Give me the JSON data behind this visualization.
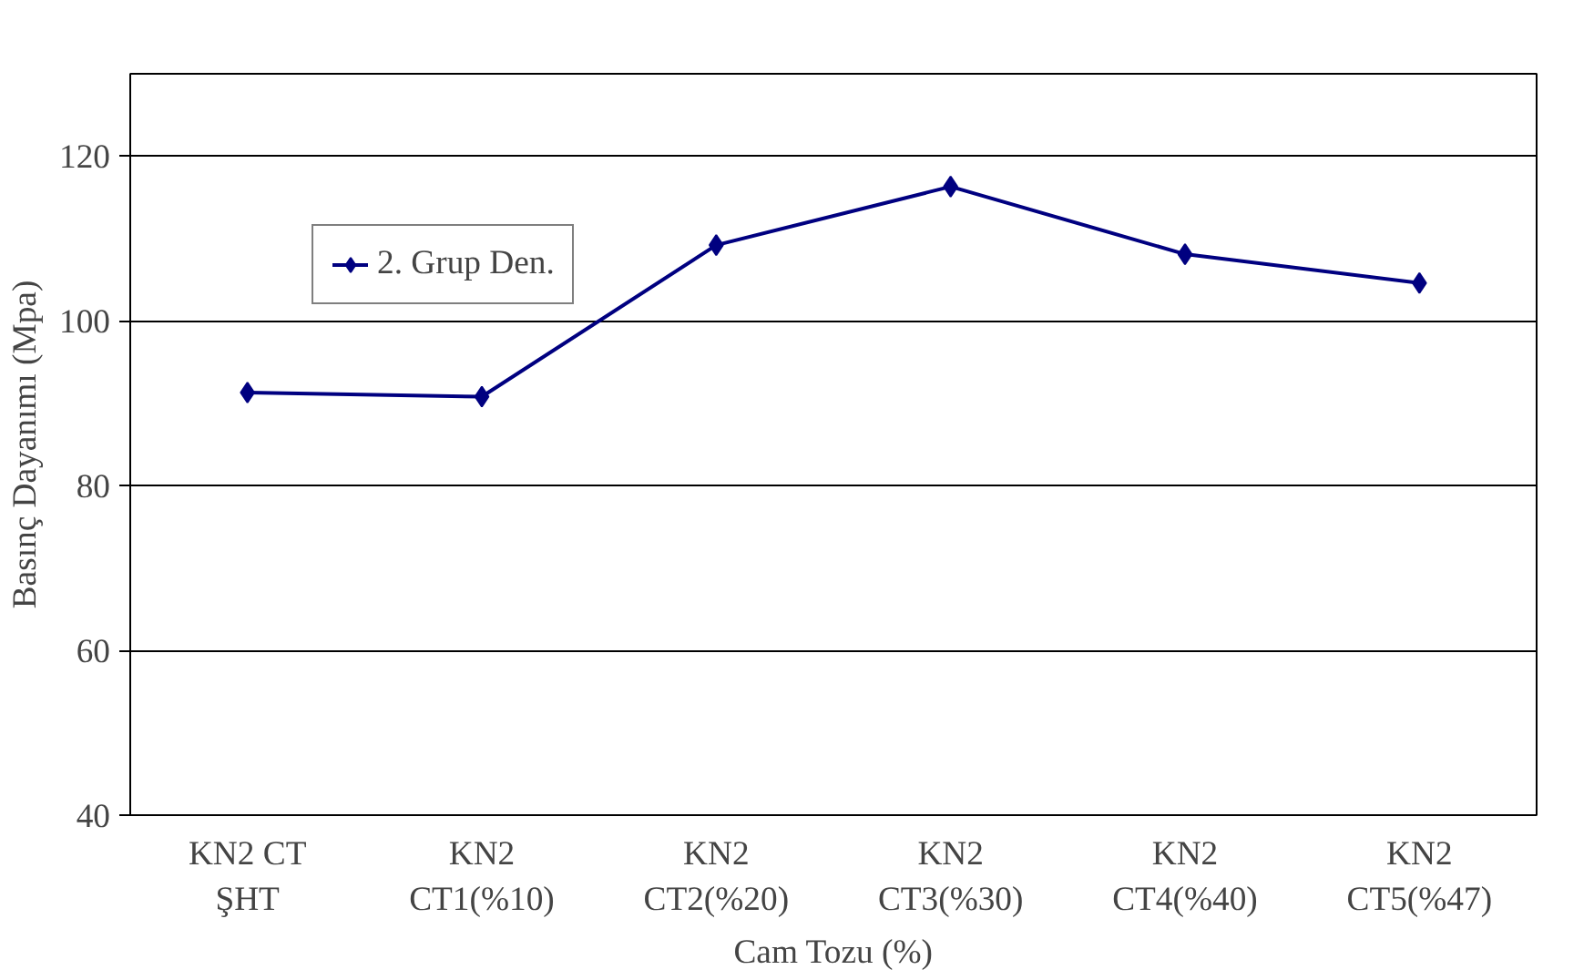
{
  "chart_data": {
    "type": "line",
    "xlabel": "Cam Tozu (%)",
    "ylabel": "Basınç Dayanımı (Mpa)",
    "categories": [
      "KN2 CT\nŞHT",
      "KN2\nCT1(%10)",
      "KN2\nCT2(%20)",
      "KN2\nCT3(%30)",
      "KN2\nCT4(%40)",
      "KN2\nCT5(%47)"
    ],
    "series": [
      {
        "name": "2. Grup Den.",
        "color": "#000080",
        "values": [
          91.3,
          90.8,
          109.2,
          116.3,
          108.1,
          104.6
        ]
      }
    ],
    "ylim": [
      40,
      130
    ],
    "yticks": [
      40,
      60,
      80,
      100,
      120
    ],
    "grid": "y",
    "legend": "top left",
    "marker": "diamond",
    "line_style": "solid"
  }
}
